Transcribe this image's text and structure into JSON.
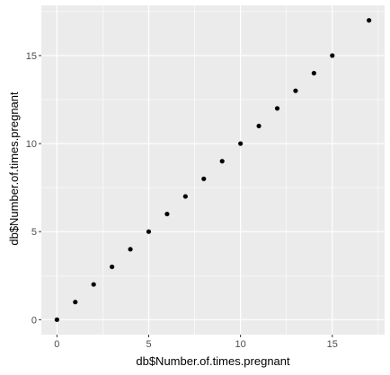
{
  "chart_data": {
    "type": "scatter",
    "title": "",
    "xlabel": "db$Number.of.times.pregnant",
    "ylabel": "db$Number.of.times.pregnant",
    "xlim": [
      -0.85,
      17.85
    ],
    "ylim": [
      -0.85,
      17.85
    ],
    "x_ticks": [
      0,
      5,
      10,
      15
    ],
    "y_ticks": [
      0,
      5,
      10,
      15
    ],
    "x_tick_labels": [
      "0",
      "5",
      "10",
      "15"
    ],
    "y_tick_labels": [
      "0",
      "5",
      "10",
      "15"
    ],
    "grid": true,
    "panel_background": "#ebebeb",
    "grid_color": "#ffffff",
    "point_color": "#000000",
    "points": [
      {
        "x": 0,
        "y": 0
      },
      {
        "x": 1,
        "y": 1
      },
      {
        "x": 2,
        "y": 2
      },
      {
        "x": 3,
        "y": 3
      },
      {
        "x": 4,
        "y": 4
      },
      {
        "x": 5,
        "y": 5
      },
      {
        "x": 6,
        "y": 6
      },
      {
        "x": 7,
        "y": 7
      },
      {
        "x": 8,
        "y": 8
      },
      {
        "x": 9,
        "y": 9
      },
      {
        "x": 10,
        "y": 10
      },
      {
        "x": 11,
        "y": 11
      },
      {
        "x": 12,
        "y": 12
      },
      {
        "x": 13,
        "y": 13
      },
      {
        "x": 14,
        "y": 14
      },
      {
        "x": 15,
        "y": 15
      },
      {
        "x": 17,
        "y": 17
      }
    ]
  }
}
